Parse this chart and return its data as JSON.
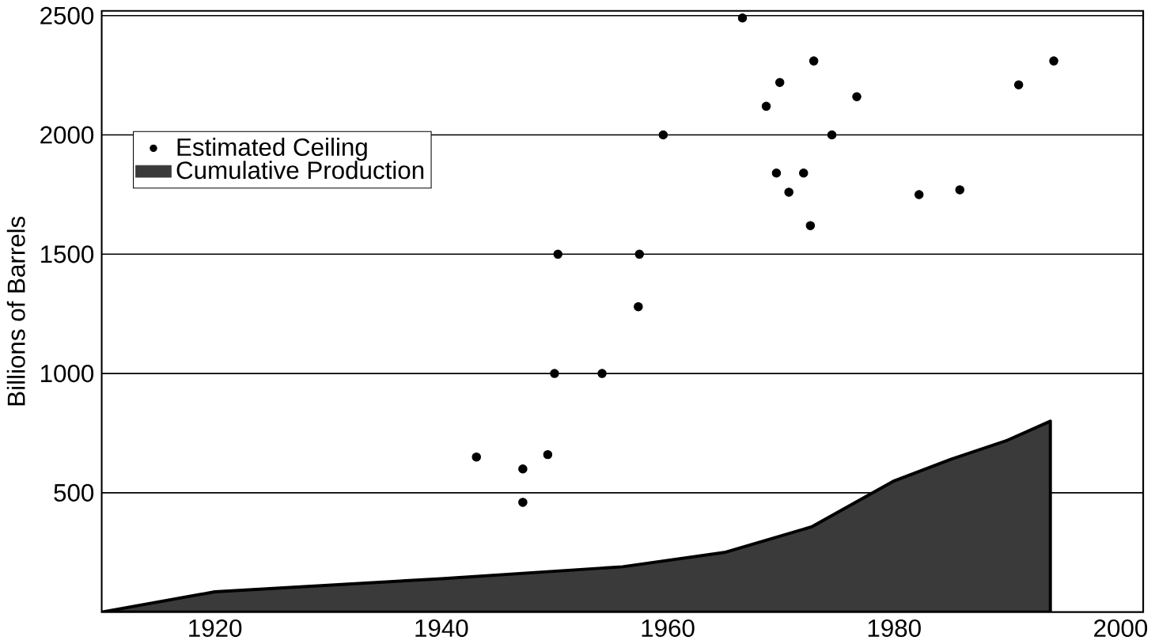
{
  "chart_data": {
    "type": "scatter",
    "ylabel": "Billions of Barrels",
    "xlim": [
      1910,
      2002
    ],
    "ylim": [
      0,
      2520
    ],
    "xticks": [
      1920,
      1940,
      1960,
      1980,
      2000
    ],
    "yticks": [
      500,
      1000,
      1500,
      2000,
      2500
    ],
    "grid": "y",
    "legend": "top left",
    "series": [
      {
        "name": "Estimated Ceiling",
        "marker": "circle",
        "color": "#000000",
        "x": [
          1943.1,
          1947.2,
          1947.2,
          1949.4,
          1950,
          1950.3,
          1954.2,
          1957.4,
          1957.5,
          1959.6,
          1966.6,
          1968.7,
          1969.9,
          1969.6,
          1970.7,
          1972,
          1972.9,
          1972.6,
          1974.5,
          1976.7,
          1982.2,
          1985.8,
          1991,
          1994.1
        ],
        "values": [
          650,
          600,
          460,
          660,
          1000,
          1500,
          1000,
          1280,
          1500,
          2000,
          2490,
          2120,
          2220,
          1840,
          1760,
          1840,
          2310,
          1620,
          2000,
          2160,
          1750,
          1770,
          2210,
          2310
        ]
      },
      {
        "name": "Cumulative Production",
        "type": "area",
        "color": "#3a3a3a",
        "x": [
          1910,
          1920,
          1940,
          1956,
          1965,
          1972.7,
          1980,
          1985,
          1990,
          1993.8
        ],
        "values": [
          0,
          85,
          140,
          190,
          250,
          357,
          550,
          640,
          720,
          800
        ]
      }
    ]
  }
}
